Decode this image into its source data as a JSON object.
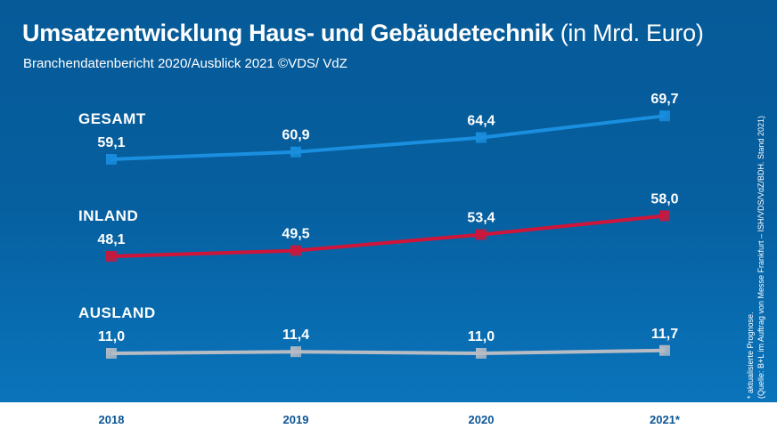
{
  "header": {
    "title_bold": "Umsatzentwicklung Haus- und Gebäudetechnik",
    "title_light": "(in Mrd. Euro)",
    "subtitle": "Branchendatenbericht 2020/Ausblick 2021 ©VDS/ VdZ"
  },
  "footnote": {
    "line1": "* aktualisierte Prognose.",
    "line2": "(Quelle: B+L im Auftrag von Messe Frankfurt – ISH/VDS/VdZ/BDH. Stand 2021)"
  },
  "colors": {
    "background": "#065f9f",
    "gesamt": "#1a8fe0",
    "inland": "#d0153a",
    "ausland": "#b7bcc4",
    "axis_text": "#0b5595"
  },
  "chart_data": {
    "type": "line",
    "title": "Umsatzentwicklung Haus- und Gebäudetechnik (in Mrd. Euro)",
    "xlabel": "",
    "ylabel": "Mrd. Euro",
    "categories": [
      "2018",
      "2019",
      "2020",
      "2021*"
    ],
    "series": [
      {
        "name": "GESAMT",
        "values": [
          59.1,
          60.9,
          64.4,
          69.7
        ],
        "labels": [
          "59,1",
          "60,9",
          "64,4",
          "69,7"
        ],
        "color": "#1a8fe0"
      },
      {
        "name": "INLAND",
        "values": [
          48.1,
          49.5,
          53.4,
          58.0
        ],
        "labels": [
          "48,1",
          "49,5",
          "53,4",
          "58,0"
        ],
        "color": "#d0153a"
      },
      {
        "name": "AUSLAND",
        "values": [
          11.0,
          11.4,
          11.0,
          11.7
        ],
        "labels": [
          "11,0",
          "11,4",
          "11,0",
          "11,7"
        ],
        "color": "#b7bcc4"
      }
    ],
    "grid": false,
    "legend": "inline-left"
  }
}
